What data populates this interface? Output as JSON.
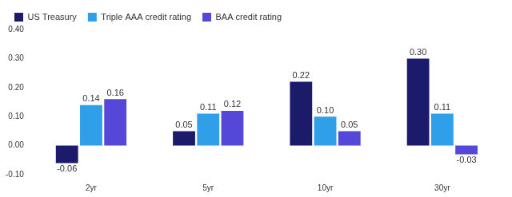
{
  "chart_data": {
    "type": "bar",
    "categories": [
      "2yr",
      "5yr",
      "10yr",
      "30yr"
    ],
    "series": [
      {
        "name": "US Treasury",
        "color": "#1c1a6b",
        "values": [
          -0.06,
          0.05,
          0.22,
          0.3
        ],
        "value_labels": [
          "-0.06",
          "0.05",
          "0.22",
          "0.30"
        ]
      },
      {
        "name": "Triple AAA credit rating",
        "color": "#2e9fe8",
        "values": [
          0.14,
          0.11,
          0.1,
          0.11
        ],
        "value_labels": [
          "0.14",
          "0.11",
          "0.10",
          "0.11"
        ]
      },
      {
        "name": "BAA credit rating",
        "color": "#5548d9",
        "values": [
          0.16,
          0.12,
          0.05,
          -0.03
        ],
        "value_labels": [
          "0.16",
          "0.12",
          "0.05",
          "-0.03"
        ]
      }
    ],
    "ylim": [
      -0.1,
      0.4
    ],
    "yticks": [
      {
        "value": -0.1,
        "label": "-0.10"
      },
      {
        "value": 0,
        "label": "0.00"
      },
      {
        "value": 0.1,
        "label": "0.10"
      },
      {
        "value": 0.2,
        "label": "0.20"
      },
      {
        "value": 0.3,
        "label": "0.30"
      },
      {
        "value": 0.4,
        "label": "0.40"
      }
    ],
    "grid": false,
    "legend": "top-left",
    "data_labels": true
  }
}
